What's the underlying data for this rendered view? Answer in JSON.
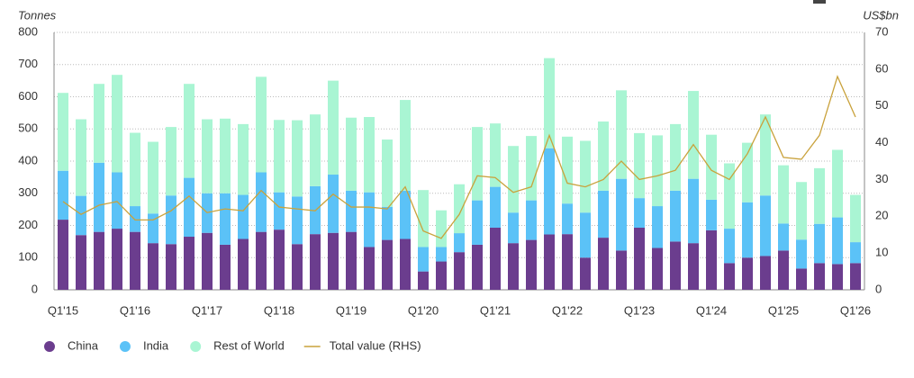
{
  "chart_data": {
    "type": "bar",
    "stacked": true,
    "y_label": "Tonnes",
    "y2_label": "US$bn",
    "categories": [
      "Q1'15",
      null,
      null,
      null,
      "Q1'16",
      null,
      null,
      null,
      "Q1'17",
      null,
      null,
      null,
      "Q1'18",
      null,
      null,
      null,
      "Q1'19",
      null,
      null,
      null,
      "Q1'20",
      null,
      null,
      null,
      "Q1'21",
      null,
      null,
      null,
      "Q1'22",
      null,
      null,
      null,
      "Q1'23",
      null,
      null,
      null,
      "Q1'24",
      null,
      null,
      null,
      "Q1'25",
      null,
      null,
      null,
      "Q1'26"
    ],
    "series": [
      {
        "name": "China",
        "color": "#6b3d8e",
        "values": [
          218,
          170,
          180,
          190,
          180,
          145,
          142,
          165,
          177,
          140,
          158,
          180,
          187,
          142,
          173,
          177,
          180,
          133,
          155,
          158,
          57,
          88,
          117,
          140,
          193,
          145,
          155,
          172,
          173,
          100,
          162,
          122,
          193,
          130,
          150,
          145,
          185,
          83,
          100,
          105,
          122,
          66,
          83,
          80,
          83
        ]
      },
      {
        "name": "India",
        "color": "#5bc2f7",
        "values": [
          152,
          122,
          215,
          175,
          80,
          92,
          151,
          183,
          123,
          160,
          137,
          185,
          116,
          148,
          149,
          181,
          128,
          170,
          103,
          150,
          76,
          45,
          59,
          138,
          127,
          95,
          123,
          268,
          95,
          140,
          146,
          223,
          92,
          130,
          158,
          200,
          95,
          107,
          172,
          188,
          84,
          90,
          122,
          145,
          65
        ]
      },
      {
        "name": "Rest of World",
        "color": "#a9f5d3",
        "values": [
          242,
          238,
          245,
          303,
          228,
          223,
          213,
          292,
          230,
          232,
          220,
          297,
          225,
          237,
          223,
          292,
          227,
          234,
          209,
          282,
          177,
          114,
          152,
          228,
          197,
          207,
          200,
          280,
          208,
          223,
          215,
          275,
          202,
          220,
          207,
          273,
          202,
          203,
          185,
          252,
          181,
          179,
          173,
          210,
          147
        ]
      },
      {
        "name": "Total value (RHS)",
        "color": "#c9a23c",
        "type": "line",
        "axis": "y2",
        "values": [
          24,
          20.5,
          23,
          24,
          19,
          19,
          21.5,
          25.5,
          21,
          22,
          21.5,
          27,
          22.5,
          22,
          21.5,
          26,
          22.5,
          22.5,
          22,
          28,
          16,
          14,
          20.5,
          31,
          30.5,
          26.5,
          28,
          42,
          29,
          28,
          30,
          35,
          30,
          31,
          32.5,
          39.5,
          32.5,
          30,
          37,
          47,
          36,
          35.5,
          42,
          58,
          47
        ]
      }
    ],
    "ylim": [
      0,
      800
    ],
    "yticks": [
      0,
      100,
      200,
      300,
      400,
      500,
      600,
      700,
      800
    ],
    "y2lim": [
      0,
      70
    ],
    "y2ticks": [
      0,
      10,
      20,
      30,
      40,
      50,
      60,
      70
    ],
    "grid": true,
    "legend": "bottom-left"
  }
}
